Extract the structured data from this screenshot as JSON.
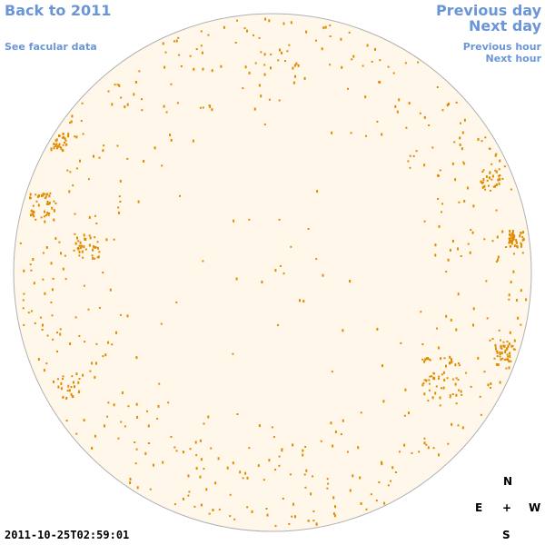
{
  "nav": {
    "back_label": "Back to 2011",
    "facular_label": "See facular data",
    "prev_day_label": "Previous day",
    "next_day_label": "Next day",
    "prev_hour_label": "Previous hour",
    "next_hour_label": "Next hour"
  },
  "timestamp": "2011-10-25T02:59:01",
  "compass": {
    "north": "N",
    "east": "E",
    "center": "+",
    "west": "W",
    "south": "S"
  },
  "colors": {
    "disk_fill": "#fff8ea",
    "disk_outline": "#b0b0b0",
    "facula": "#e08a00",
    "link": "#6a96d8"
  }
}
